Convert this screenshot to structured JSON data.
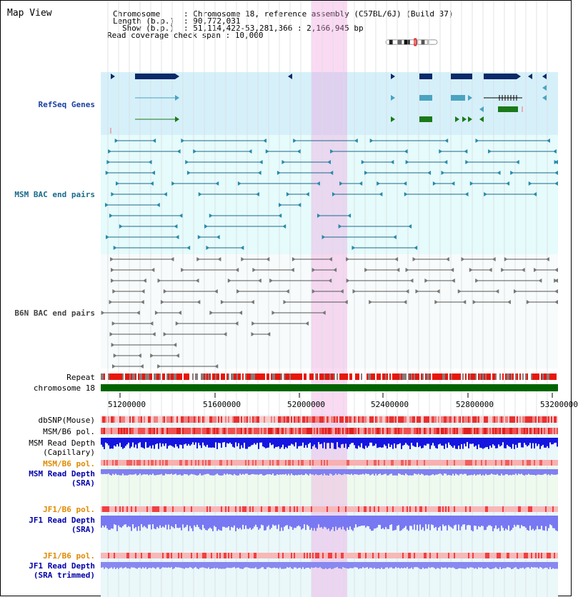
{
  "map_title": "Map View",
  "info": {
    "chromosome_key": "Chromosome",
    "chromosome_value": ": Chromosome 18, reference assembly (C57BL/6J) (Build 37)",
    "length_key": "Length (b.p.)",
    "length_value": ": 90,772,031",
    "show_key": "Show (b.p.)",
    "show_value": ": 51,114,422-53,281,366 : 2,166,945 bp",
    "coverage_line": "Read coverage check span : 10,000"
  },
  "tracks": {
    "refseq": "RefSeq Genes",
    "msm_bac": "MSM BAC end pairs",
    "b6n_bac": "B6N BAC end pairs",
    "repeat": "Repeat",
    "chromosome": "chromosome 18",
    "dbsnp": "dbSNP(Mouse)",
    "msm_b6_pol_1": "MSM/B6 pol.",
    "msm_read_depth_cap_1": "MSM Read Depth",
    "msm_read_depth_cap_2": "(Capillary)",
    "msm_b6_pol_2": "MSM/B6 pol.",
    "msm_read_depth_sra_1": "MSM Read Depth",
    "msm_read_depth_sra_2": "(SRA)",
    "jf1_b6_pol_1": "JF1/B6 pol.",
    "jf1_read_depth_sra_1": "JF1 Read Depth",
    "jf1_read_depth_sra_2": "(SRA)",
    "jf1_b6_pol_2": "JF1/B6 pol.",
    "jf1_read_depth_trim_1": "JF1 Read Depth",
    "jf1_read_depth_trim_2": "(SRA trimmed)"
  },
  "axis_ticks": [
    "51200000",
    "51600000",
    "52000000",
    "52400000",
    "52800000",
    "53200000"
  ],
  "colors": {
    "refseq_bg": "#d6f0fa",
    "bac_bg": "#e6fbfb",
    "highlight": "#f5c8ee",
    "chromosome_bar": "#006400",
    "repeat_red": "#e8160b",
    "depth_blue": "#1a1ae6",
    "depth_light": "#8a8cf5",
    "pol_red": "#f06060",
    "gene_navy": "#0a2a6a",
    "gene_teal": "#4aa4c0",
    "gene_green": "#1a7a1a"
  }
}
